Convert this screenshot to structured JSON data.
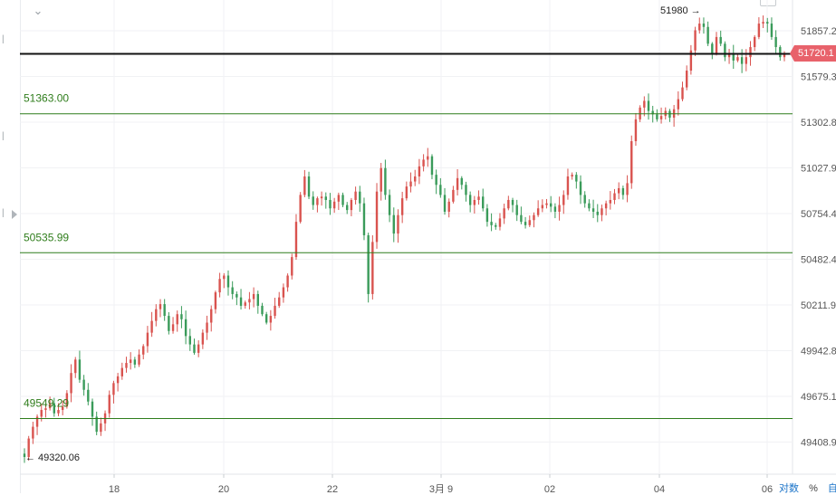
{
  "chart_data": {
    "type": "candlestick",
    "y_ticks": [
      "51857.2",
      "51579.3",
      "51302.8",
      "51027.9",
      "50754.4",
      "50482.4",
      "50211.9",
      "49942.8",
      "49675.1",
      "49408.9"
    ],
    "x_ticks": [
      "18",
      "20",
      "22",
      "3月 9",
      "02",
      "04",
      "06"
    ],
    "horizontal_lines": [
      {
        "label": "",
        "value": 51720.1,
        "color": "#111111"
      },
      {
        "label": "51363.00",
        "value": 51363.0,
        "color": "#2f7d1c"
      },
      {
        "label": "50535.99",
        "value": 50535.99,
        "color": "#2f7d1c"
      },
      {
        "label": "49549.29",
        "value": 49549.29,
        "color": "#2f7d1c"
      }
    ],
    "annotations": {
      "high": {
        "label": "51980",
        "value": 51980
      },
      "low": {
        "label": "49320.06",
        "value": 49320.06
      }
    },
    "last_price": {
      "label": "51720.1",
      "value": 51720.1
    },
    "up_color": "#d9534f",
    "down_color": "#3a9b5a",
    "grid": true,
    "closes": [
      49320,
      49430,
      49500,
      49560,
      49600,
      49610,
      49640,
      49580,
      49600,
      49620,
      49700,
      49820,
      49900,
      49780,
      49720,
      49650,
      49560,
      49470,
      49520,
      49580,
      49690,
      49760,
      49800,
      49850,
      49880,
      49900,
      49870,
      49930,
      49980,
      50060,
      50130,
      50200,
      50230,
      50160,
      50070,
      50110,
      50170,
      50140,
      50040,
      49990,
      49940,
      49990,
      50060,
      50120,
      50200,
      50300,
      50380,
      50400,
      50330,
      50290,
      50270,
      50220,
      50240,
      50260,
      50290,
      50220,
      50170,
      50120,
      50160,
      50220,
      50270,
      50330,
      50400,
      50510,
      50720,
      50880,
      50990,
      50870,
      50820,
      50860,
      50870,
      50850,
      50800,
      50840,
      50880,
      50820,
      50790,
      50850,
      50900,
      50830,
      50640,
      50290,
      50600,
      50900,
      51040,
      50880,
      50760,
      50650,
      50760,
      50860,
      50930,
      50960,
      50990,
      51050,
      51090,
      51110,
      51000,
      50940,
      50880,
      50780,
      50840,
      50910,
      50980,
      50940,
      50880,
      50820,
      50850,
      50870,
      50800,
      50720,
      50700,
      50690,
      50740,
      50800,
      50850,
      50820,
      50760,
      50720,
      50700,
      50730,
      50760,
      50800,
      50820,
      50830,
      50810,
      50780,
      50820,
      50880,
      50990,
      51000,
      50960,
      50880,
      50830,
      50800,
      50780,
      50760,
      50800,
      50830,
      50850,
      50890,
      50920,
      50880,
      50950,
      51200,
      51330,
      51400,
      51440,
      51380,
      51360,
      51330,
      51350,
      51380,
      51340,
      51390,
      51450,
      51520,
      51620,
      51740,
      51860,
      51900,
      51880,
      51780,
      51720,
      51820,
      51780,
      51700,
      51720,
      51680,
      51700,
      51660,
      51700,
      51760,
      51820,
      51900,
      51910,
      51900,
      51820,
      51760,
      51700,
      51720
    ]
  },
  "ui": {
    "chevron_glyph": "⌄",
    "last_price_text": "51720.1",
    "bottom_controls": [
      "对数",
      "%",
      "自"
    ]
  }
}
